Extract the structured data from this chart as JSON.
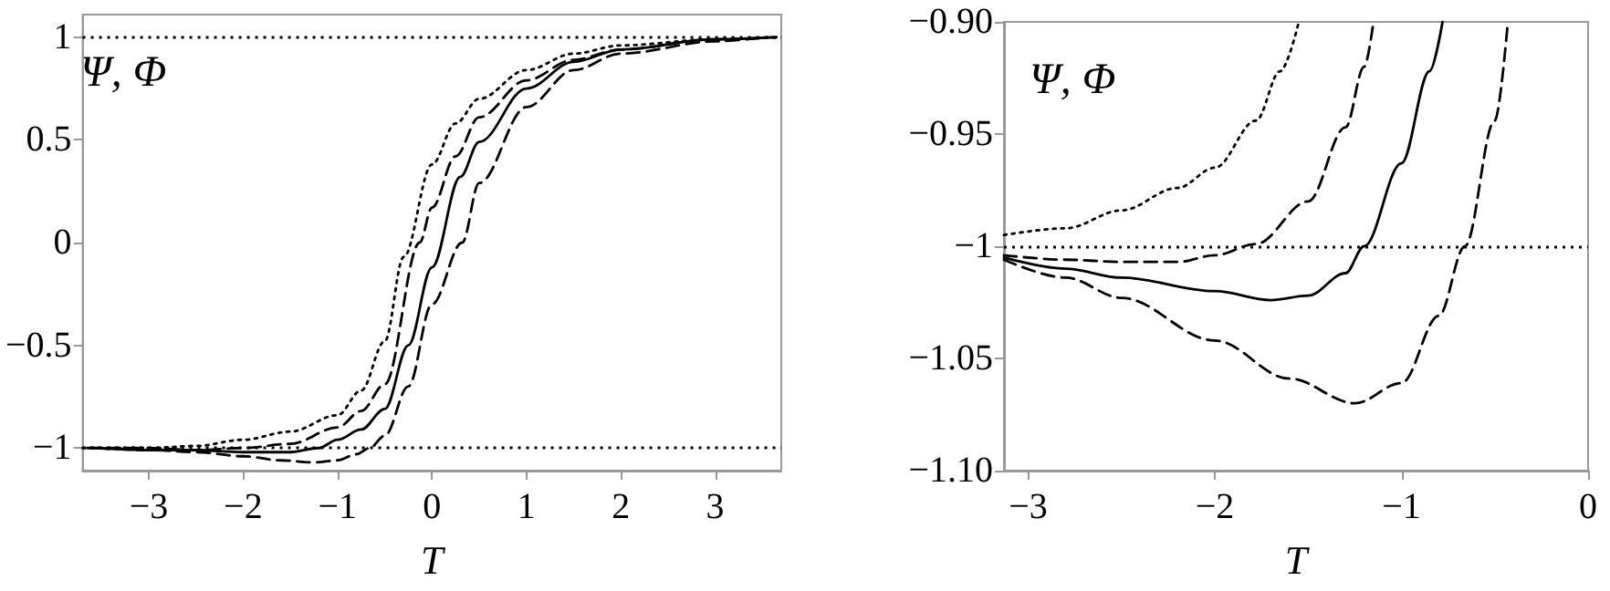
{
  "chart_data": [
    {
      "type": "line",
      "xlabel": "T",
      "ylabel": "Ψ, Φ",
      "xlim": [
        -3.7,
        3.7
      ],
      "xticks": [
        -3,
        -2,
        -1,
        0,
        1,
        2,
        3
      ],
      "ylim": [
        -1.11,
        1.11
      ],
      "yticks": [
        -1,
        -0.5,
        0,
        0.5,
        1
      ],
      "grid": false,
      "marker": "none",
      "ref_lines": [
        {
          "axis": "y",
          "value": 1,
          "color": "#000000",
          "line_style": "dotted"
        },
        {
          "axis": "y",
          "value": -1,
          "color": "#000000",
          "line_style": "dotted"
        }
      ],
      "series": [
        {
          "color": "#000000",
          "line_style": "dotted",
          "x": [
            -3.7,
            -3,
            -2.5,
            -2,
            -1.5,
            -1,
            -0.75,
            -0.5,
            -0.3,
            0,
            0.25,
            0.5,
            1,
            1.5,
            2,
            3,
            3.7
          ],
          "values": [
            -1.0,
            -1.0,
            -0.99,
            -0.96,
            -0.92,
            -0.84,
            -0.72,
            -0.48,
            -0.07,
            0.38,
            0.58,
            0.7,
            0.84,
            0.92,
            0.96,
            0.99,
            1.0
          ]
        },
        {
          "color": "#000000",
          "line_style": "dashed",
          "x": [
            -3.65,
            -3,
            -2.5,
            -2,
            -1.5,
            -1,
            -0.75,
            -0.5,
            -0.13,
            0,
            0.25,
            0.5,
            1,
            1.5,
            2,
            3,
            3.65
          ],
          "values": [
            -1.0,
            -1.0,
            -1.01,
            -1.0,
            -0.98,
            -0.9,
            -0.82,
            -0.69,
            0.0,
            0.17,
            0.42,
            0.61,
            0.79,
            0.89,
            0.94,
            0.99,
            1.0
          ]
        },
        {
          "color": "#000000",
          "line_style": "solid",
          "x": [
            -3.6,
            -3,
            -2.5,
            -2,
            -1.5,
            -1.2,
            -1,
            -0.75,
            -0.5,
            -0.25,
            0,
            0.3,
            0.5,
            1,
            1.5,
            2,
            3,
            3.6
          ],
          "values": [
            -1.0,
            -1.01,
            -1.01,
            -1.02,
            -1.02,
            -1.0,
            -0.96,
            -0.91,
            -0.81,
            -0.5,
            -0.12,
            0.32,
            0.49,
            0.75,
            0.88,
            0.94,
            0.99,
            1.0
          ]
        },
        {
          "color": "#000000",
          "line_style": "dashed",
          "x": [
            -3.55,
            -3,
            -2.5,
            -2,
            -1.6,
            -1.25,
            -1,
            -0.8,
            -0.66,
            -0.5,
            -0.25,
            0,
            0.32,
            0.5,
            1,
            1.5,
            2,
            3,
            3.55
          ],
          "values": [
            -1.0,
            -1.01,
            -1.02,
            -1.04,
            -1.06,
            -1.07,
            -1.06,
            -1.03,
            -1.0,
            -0.94,
            -0.7,
            -0.3,
            0.0,
            0.29,
            0.66,
            0.84,
            0.92,
            0.98,
            1.0
          ]
        }
      ]
    },
    {
      "type": "line",
      "xlabel": "T",
      "ylabel": "Ψ, Φ",
      "xlim": [
        -3.13,
        0
      ],
      "xticks": [
        -3,
        -2,
        -1,
        0
      ],
      "ylim": [
        -1.1,
        -0.9
      ],
      "yticks": [
        {
          "value": -1.1,
          "label": "−1.10"
        },
        {
          "value": -1.05,
          "label": "−1.05"
        },
        {
          "value": -1,
          "label": "−1"
        },
        {
          "value": -0.95,
          "label": "−0.95"
        },
        {
          "value": -0.9,
          "label": "−0.90"
        }
      ],
      "grid": false,
      "marker": "none",
      "ref_lines": [
        {
          "axis": "y",
          "value": -1,
          "color": "#000000",
          "line_style": "dotted"
        }
      ],
      "series": [
        {
          "color": "#000000",
          "line_style": "dotted",
          "x": [
            -3.13,
            -2.8,
            -2.5,
            -2.2,
            -2,
            -1.78,
            -1.65,
            -1.55
          ],
          "values": [
            -0.995,
            -0.992,
            -0.984,
            -0.974,
            -0.965,
            -0.944,
            -0.922,
            -0.9
          ]
        },
        {
          "color": "#000000",
          "line_style": "dashed",
          "x": [
            -3.13,
            -2.8,
            -2.5,
            -2.2,
            -2,
            -1.78,
            -1.5,
            -1.3,
            -1.2,
            -1.15
          ],
          "values": [
            -1.004,
            -1.006,
            -1.007,
            -1.007,
            -1.004,
            -0.999,
            -0.98,
            -0.947,
            -0.92,
            -0.9
          ]
        },
        {
          "color": "#000000",
          "line_style": "solid",
          "x": [
            -3.13,
            -2.8,
            -2.5,
            -2,
            -1.7,
            -1.5,
            -1.3,
            -1.2,
            -1,
            -0.85,
            -0.78
          ],
          "values": [
            -1.005,
            -1.01,
            -1.014,
            -1.02,
            -1.024,
            -1.022,
            -1.012,
            -1.0,
            -0.963,
            -0.922,
            -0.9
          ]
        },
        {
          "color": "#000000",
          "line_style": "dashed",
          "x": [
            -3.13,
            -2.8,
            -2.5,
            -2,
            -1.6,
            -1.25,
            -1,
            -0.8,
            -0.66,
            -0.5,
            -0.43
          ],
          "values": [
            -1.006,
            -1.014,
            -1.023,
            -1.042,
            -1.059,
            -1.07,
            -1.061,
            -1.031,
            -1.0,
            -0.944,
            -0.9
          ]
        }
      ]
    }
  ]
}
